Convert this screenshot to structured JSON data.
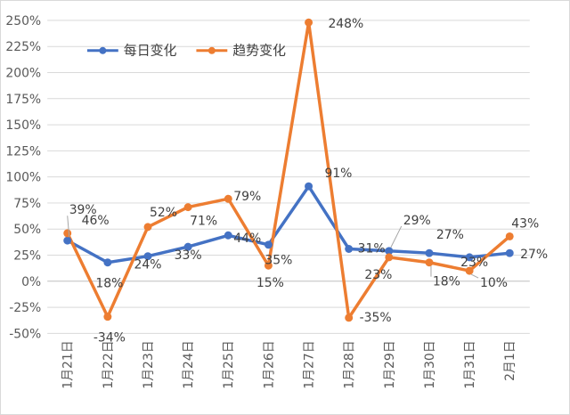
{
  "chart_data": {
    "type": "line",
    "categories": [
      "1月21日",
      "1月22日",
      "1月23日",
      "1月24日",
      "1月25日",
      "1月26日",
      "1月27日",
      "1月28日",
      "1月29日",
      "1月30日",
      "1月31日",
      "2月1日"
    ],
    "ylim": [
      -50,
      250
    ],
    "yticks": [
      "-50%",
      "-25%",
      "0%",
      "25%",
      "50%",
      "75%",
      "100%",
      "125%",
      "150%",
      "175%",
      "200%",
      "225%",
      "250%"
    ],
    "ytick_values": [
      -50,
      -25,
      0,
      25,
      50,
      75,
      100,
      125,
      150,
      175,
      200,
      225,
      250
    ],
    "grid": true,
    "legend": "top-left",
    "series": [
      {
        "name": "每日变化",
        "color": "#4472C4",
        "values": [
          39,
          18,
          24,
          33,
          44,
          35,
          91,
          31,
          29,
          27,
          23,
          27
        ],
        "labels": [
          "39%",
          "18%",
          "24%",
          "33%",
          "44%",
          "35%",
          "91%",
          "31%",
          "29%",
          "27%",
          "23%",
          "27%"
        ]
      },
      {
        "name": "趋势变化",
        "color": "#ED7D31",
        "values": [
          46,
          -34,
          52,
          71,
          79,
          15,
          248,
          -35,
          23,
          18,
          10,
          43
        ],
        "labels": [
          "46%",
          "-34%",
          "52%",
          "71%",
          "79%",
          "15%",
          "248%",
          "-35%",
          "23%",
          "18%",
          "10%",
          "43%"
        ]
      }
    ]
  }
}
